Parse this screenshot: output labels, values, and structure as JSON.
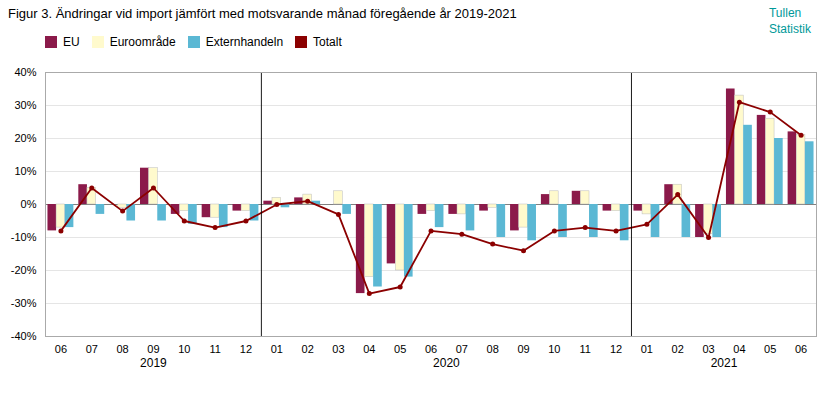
{
  "chart_data": {
    "type": "bar",
    "title": "Figur 3. Ändringar vid import jämfört med motsvarande månad föregående år 2019-2021",
    "categories": [
      "06",
      "07",
      "08",
      "09",
      "10",
      "11",
      "12",
      "01",
      "02",
      "03",
      "04",
      "05",
      "06",
      "07",
      "08",
      "09",
      "10",
      "11",
      "12",
      "01",
      "02",
      "03",
      "04",
      "05",
      "06"
    ],
    "series": [
      {
        "name": "EU",
        "color": "#8B1A4A",
        "values": [
          -8,
          6,
          0,
          11,
          -3,
          -4,
          -2,
          1,
          2,
          0,
          -27,
          -18,
          -3,
          -3,
          -2,
          -8,
          3,
          4,
          -2,
          -2,
          6,
          -10,
          35,
          27,
          22
        ]
      },
      {
        "name": "Euroområde",
        "color": "#FFFACD",
        "values": [
          -7,
          5,
          -1,
          11,
          -2,
          -4,
          -2,
          2,
          3,
          4,
          -22,
          -20,
          -2,
          -3,
          -1,
          -7,
          4,
          4,
          -2,
          -3,
          6,
          -9,
          33,
          26,
          21
        ]
      },
      {
        "name": "Externhandeln",
        "color": "#5BB8D4",
        "values": [
          -7,
          -3,
          -5,
          -5,
          -6,
          -7,
          -5,
          -1,
          1,
          -3,
          -25,
          -22,
          -7,
          -8,
          -10,
          -11,
          -10,
          -10,
          -11,
          -10,
          -10,
          -10,
          24,
          20,
          19
        ]
      },
      {
        "name": "Totalt",
        "type": "line",
        "color": "#8B0000",
        "marker": "circle",
        "line_style": "solid",
        "values": [
          -8,
          5,
          -2,
          5,
          -5,
          -7,
          -5,
          0,
          1,
          -3,
          -27,
          -25,
          -8,
          -9,
          -12,
          -14,
          -8,
          -7,
          -8,
          -6,
          3,
          -10,
          31,
          28,
          21
        ]
      }
    ],
    "ylim": [
      -40,
      40
    ],
    "yticks": [
      {
        "value": -40,
        "label": "-40%"
      },
      {
        "value": -30,
        "label": "-30%"
      },
      {
        "value": -20,
        "label": "-20%"
      },
      {
        "value": -10,
        "label": "-10%"
      },
      {
        "value": 0,
        "label": "0%"
      },
      {
        "value": 10,
        "label": "10%"
      },
      {
        "value": 20,
        "label": "20%"
      },
      {
        "value": 30,
        "label": "30%"
      },
      {
        "value": 40,
        "label": "40%"
      }
    ],
    "grid": true,
    "legend": "top",
    "annotations": [
      "2019",
      "2020",
      "2021"
    ],
    "watermark": [
      "Tullen",
      "Statistik"
    ]
  }
}
